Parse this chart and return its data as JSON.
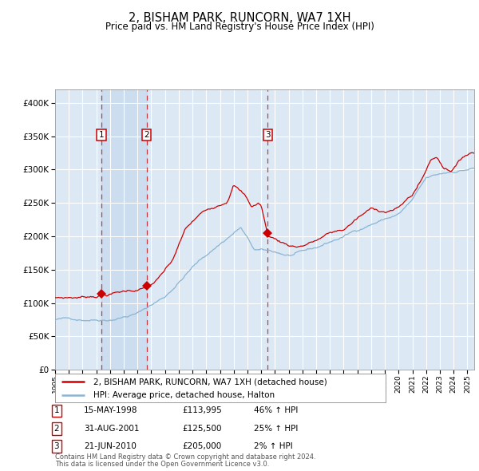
{
  "title": "2, BISHAM PARK, RUNCORN, WA7 1XH",
  "subtitle": "Price paid vs. HM Land Registry's House Price Index (HPI)",
  "plot_bg_color": "#dce9f5",
  "grid_color": "#ffffff",
  "red_line_color": "#cc0000",
  "blue_line_color": "#8ab4d4",
  "sale_marker_color": "#cc0000",
  "ylim": [
    0,
    420000
  ],
  "yticks": [
    0,
    50000,
    100000,
    150000,
    200000,
    250000,
    300000,
    350000,
    400000
  ],
  "xlim_start": 1995.0,
  "xlim_end": 2025.5,
  "sale_dates": [
    1998.37,
    2001.66,
    2010.47
  ],
  "sale_prices": [
    113995,
    125500,
    205000
  ],
  "sale_labels": [
    "1",
    "2",
    "3"
  ],
  "sale_hpi_pct": [
    "46% ↑ HPI",
    "25% ↑ HPI",
    "2% ↑ HPI"
  ],
  "sale_display_dates": [
    "15-MAY-1998",
    "31-AUG-2001",
    "21-JUN-2010"
  ],
  "sale_display_prices": [
    "£113,995",
    "£125,500",
    "£205,000"
  ],
  "legend_line1": "2, BISHAM PARK, RUNCORN, WA7 1XH (detached house)",
  "legend_line2": "HPI: Average price, detached house, Halton",
  "footer1": "Contains HM Land Registry data © Crown copyright and database right 2024.",
  "footer2": "This data is licensed under the Open Government Licence v3.0."
}
